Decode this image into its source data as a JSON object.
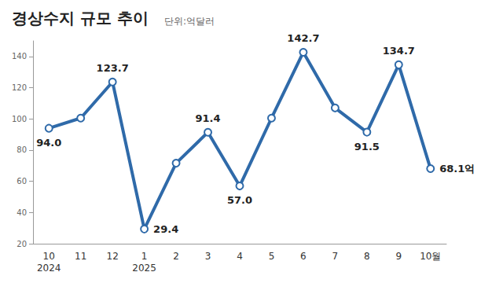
{
  "chart_data": {
    "type": "line",
    "title": "경상수지 규모 추이",
    "subtitle": "단위:억달러",
    "categories": [
      "10\n2024",
      "11",
      "12",
      "1\n2025",
      "2",
      "3",
      "4",
      "5",
      "6",
      "7",
      "8",
      "9",
      "10월"
    ],
    "values": [
      94.0,
      100.5,
      123.7,
      29.4,
      71.6,
      91.4,
      57.0,
      100.5,
      142.7,
      107.0,
      91.5,
      134.7,
      68.1
    ],
    "value_labels": [
      "94.0",
      null,
      "123.7",
      "29.4",
      null,
      "91.4",
      "57.0",
      null,
      "142.7",
      null,
      "91.5",
      "134.7",
      "68.1억"
    ],
    "color": "#2f6aa9",
    "marker": "circle",
    "ylim": [
      20,
      150
    ],
    "yticks": [
      20,
      40,
      60,
      80,
      100,
      120,
      140
    ],
    "grid": false,
    "data_labels": true
  }
}
